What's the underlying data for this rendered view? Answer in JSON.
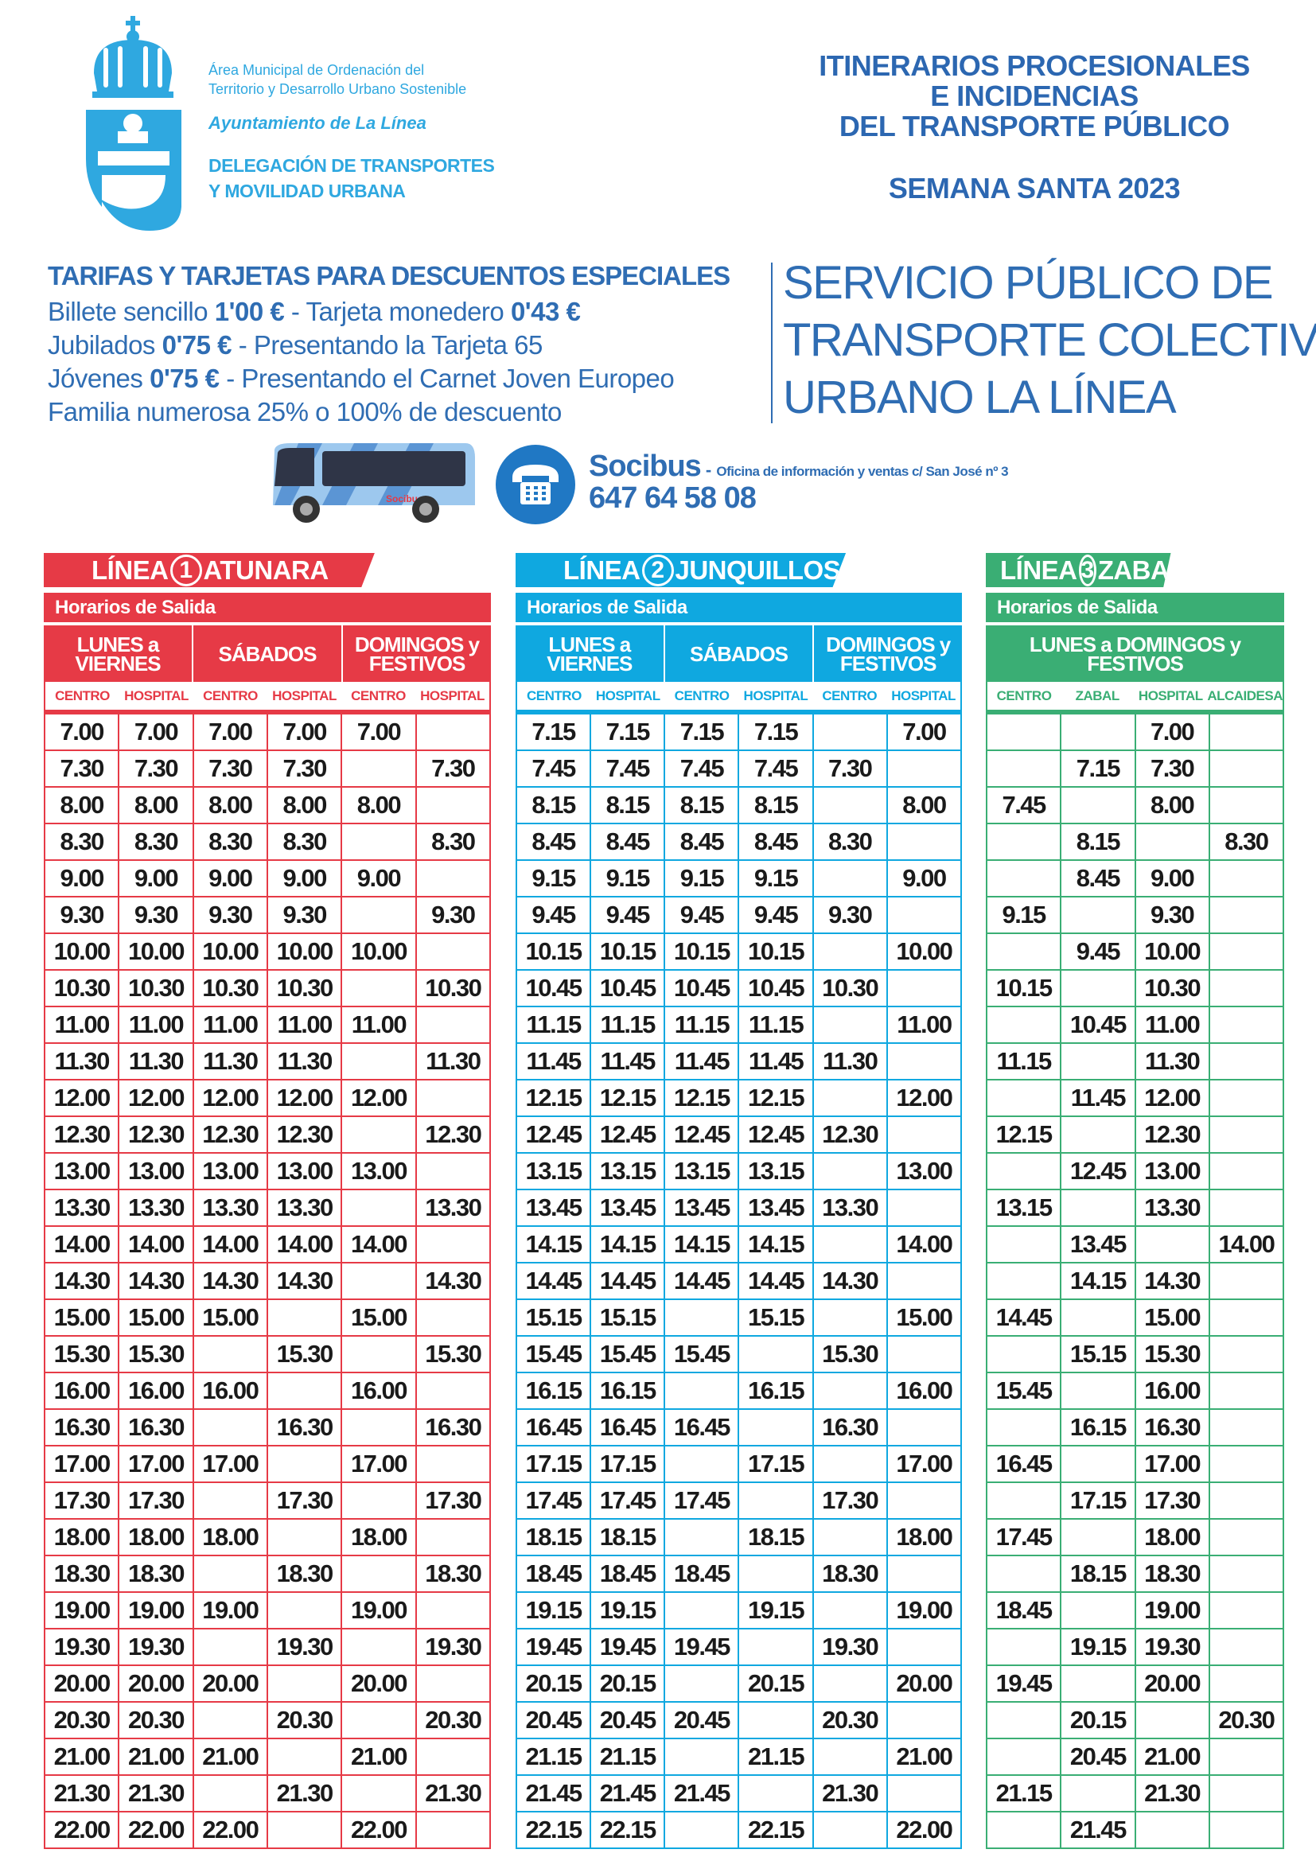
{
  "header": {
    "org_line1": "Área Municipal de Ordenación del",
    "org_line2": "Territorio y Desarrollo Urbano Sostenible",
    "ayuntamiento": "Ayuntamiento de La Línea",
    "delegacion_line1": "DELEGACIÓN DE TRANSPORTES",
    "delegacion_line2": "Y MOVILIDAD URBANA",
    "title_line1": "ITINERARIOS PROCESIONALES",
    "title_line2": "E INCIDENCIAS",
    "title_line3": "DEL TRANSPORTE PÚBLICO",
    "subtitle": "SEMANA SANTA 2023"
  },
  "tarifas": {
    "title": "TARIFAS Y TARJETAS PARA DESCUENTOS ESPECIALES",
    "l1a": "Billete sencillo ",
    "l1b": "1'00 €",
    "l1c": " - Tarjeta monedero ",
    "l1d": "0'43 €",
    "l2a": "Jubilados ",
    "l2b": "0'75 €",
    "l2c": " - Presentando la Tarjeta 65",
    "l3a": "Jóvenes ",
    "l3b": "0'75 €",
    "l3c": " - Presentando el Carnet Joven Europeo",
    "l4": "Familia numerosa 25% o 100% de descuento"
  },
  "servicio": {
    "line1": "SERVICIO PÚBLICO DE",
    "line2": "TRANSPORTE COLECTIVO",
    "line3": "URBANO LA LÍNEA"
  },
  "contact": {
    "company": "Socibus",
    "dash": " - ",
    "office": "Oficina de información y ventas c/ San José nº 3",
    "phone": "647 64 58 08",
    "icon": "telephone-icon",
    "bus_logo_text": "Socibus"
  },
  "colors": {
    "linea1": "#e63a46",
    "linea2": "#0fa8e0",
    "linea3": "#3aae74",
    "text_blue": "#2f6db3",
    "logo_blue": "#2fa8e0"
  },
  "lines": [
    {
      "prefix": "LÍNEA",
      "number": "1",
      "name": "ATUNARA",
      "horarios": "Horarios de Salida",
      "groups": [
        "LUNES a VIERNES",
        "SÁBADOS",
        "DOMINGOS y FESTIVOS"
      ],
      "columns": [
        "CENTRO",
        "HOSPITAL",
        "CENTRO",
        "HOSPITAL",
        "CENTRO",
        "HOSPITAL"
      ],
      "rows": [
        [
          "7.00",
          "7.00",
          "7.00",
          "7.00",
          "7.00",
          ""
        ],
        [
          "7.30",
          "7.30",
          "7.30",
          "7.30",
          "",
          "7.30"
        ],
        [
          "8.00",
          "8.00",
          "8.00",
          "8.00",
          "8.00",
          ""
        ],
        [
          "8.30",
          "8.30",
          "8.30",
          "8.30",
          "",
          "8.30"
        ],
        [
          "9.00",
          "9.00",
          "9.00",
          "9.00",
          "9.00",
          ""
        ],
        [
          "9.30",
          "9.30",
          "9.30",
          "9.30",
          "",
          "9.30"
        ],
        [
          "10.00",
          "10.00",
          "10.00",
          "10.00",
          "10.00",
          ""
        ],
        [
          "10.30",
          "10.30",
          "10.30",
          "10.30",
          "",
          "10.30"
        ],
        [
          "11.00",
          "11.00",
          "11.00",
          "11.00",
          "11.00",
          ""
        ],
        [
          "11.30",
          "11.30",
          "11.30",
          "11.30",
          "",
          "11.30"
        ],
        [
          "12.00",
          "12.00",
          "12.00",
          "12.00",
          "12.00",
          ""
        ],
        [
          "12.30",
          "12.30",
          "12.30",
          "12.30",
          "",
          "12.30"
        ],
        [
          "13.00",
          "13.00",
          "13.00",
          "13.00",
          "13.00",
          ""
        ],
        [
          "13.30",
          "13.30",
          "13.30",
          "13.30",
          "",
          "13.30"
        ],
        [
          "14.00",
          "14.00",
          "14.00",
          "14.00",
          "14.00",
          ""
        ],
        [
          "14.30",
          "14.30",
          "14.30",
          "14.30",
          "",
          "14.30"
        ],
        [
          "15.00",
          "15.00",
          "15.00",
          "",
          "15.00",
          ""
        ],
        [
          "15.30",
          "15.30",
          "",
          "15.30",
          "",
          "15.30"
        ],
        [
          "16.00",
          "16.00",
          "16.00",
          "",
          "16.00",
          ""
        ],
        [
          "16.30",
          "16.30",
          "",
          "16.30",
          "",
          "16.30"
        ],
        [
          "17.00",
          "17.00",
          "17.00",
          "",
          "17.00",
          ""
        ],
        [
          "17.30",
          "17.30",
          "",
          "17.30",
          "",
          "17.30"
        ],
        [
          "18.00",
          "18.00",
          "18.00",
          "",
          "18.00",
          ""
        ],
        [
          "18.30",
          "18.30",
          "",
          "18.30",
          "",
          "18.30"
        ],
        [
          "19.00",
          "19.00",
          "19.00",
          "",
          "19.00",
          ""
        ],
        [
          "19.30",
          "19.30",
          "",
          "19.30",
          "",
          "19.30"
        ],
        [
          "20.00",
          "20.00",
          "20.00",
          "",
          "20.00",
          ""
        ],
        [
          "20.30",
          "20.30",
          "",
          "20.30",
          "",
          "20.30"
        ],
        [
          "21.00",
          "21.00",
          "21.00",
          "",
          "21.00",
          ""
        ],
        [
          "21.30",
          "21.30",
          "",
          "21.30",
          "",
          "21.30"
        ],
        [
          "22.00",
          "22.00",
          "22.00",
          "",
          "22.00",
          ""
        ]
      ]
    },
    {
      "prefix": "LÍNEA",
      "number": "2",
      "name": "JUNQUILLOS",
      "horarios": "Horarios de Salida",
      "groups": [
        "LUNES a VIERNES",
        "SÁBADOS",
        "DOMINGOS y FESTIVOS"
      ],
      "columns": [
        "CENTRO",
        "HOSPITAL",
        "CENTRO",
        "HOSPITAL",
        "CENTRO",
        "HOSPITAL"
      ],
      "rows": [
        [
          "7.15",
          "7.15",
          "7.15",
          "7.15",
          "",
          "7.00"
        ],
        [
          "7.45",
          "7.45",
          "7.45",
          "7.45",
          "7.30",
          ""
        ],
        [
          "8.15",
          "8.15",
          "8.15",
          "8.15",
          "",
          "8.00"
        ],
        [
          "8.45",
          "8.45",
          "8.45",
          "8.45",
          "8.30",
          ""
        ],
        [
          "9.15",
          "9.15",
          "9.15",
          "9.15",
          "",
          "9.00"
        ],
        [
          "9.45",
          "9.45",
          "9.45",
          "9.45",
          "9.30",
          ""
        ],
        [
          "10.15",
          "10.15",
          "10.15",
          "10.15",
          "",
          "10.00"
        ],
        [
          "10.45",
          "10.45",
          "10.45",
          "10.45",
          "10.30",
          ""
        ],
        [
          "11.15",
          "11.15",
          "11.15",
          "11.15",
          "",
          "11.00"
        ],
        [
          "11.45",
          "11.45",
          "11.45",
          "11.45",
          "11.30",
          ""
        ],
        [
          "12.15",
          "12.15",
          "12.15",
          "12.15",
          "",
          "12.00"
        ],
        [
          "12.45",
          "12.45",
          "12.45",
          "12.45",
          "12.30",
          ""
        ],
        [
          "13.15",
          "13.15",
          "13.15",
          "13.15",
          "",
          "13.00"
        ],
        [
          "13.45",
          "13.45",
          "13.45",
          "13.45",
          "13.30",
          ""
        ],
        [
          "14.15",
          "14.15",
          "14.15",
          "14.15",
          "",
          "14.00"
        ],
        [
          "14.45",
          "14.45",
          "14.45",
          "14.45",
          "14.30",
          ""
        ],
        [
          "15.15",
          "15.15",
          "",
          "15.15",
          "",
          "15.00"
        ],
        [
          "15.45",
          "15.45",
          "15.45",
          "",
          "15.30",
          ""
        ],
        [
          "16.15",
          "16.15",
          "",
          "16.15",
          "",
          "16.00"
        ],
        [
          "16.45",
          "16.45",
          "16.45",
          "",
          "16.30",
          ""
        ],
        [
          "17.15",
          "17.15",
          "",
          "17.15",
          "",
          "17.00"
        ],
        [
          "17.45",
          "17.45",
          "17.45",
          "",
          "17.30",
          ""
        ],
        [
          "18.15",
          "18.15",
          "",
          "18.15",
          "",
          "18.00"
        ],
        [
          "18.45",
          "18.45",
          "18.45",
          "",
          "18.30",
          ""
        ],
        [
          "19.15",
          "19.15",
          "",
          "19.15",
          "",
          "19.00"
        ],
        [
          "19.45",
          "19.45",
          "19.45",
          "",
          "19.30",
          ""
        ],
        [
          "20.15",
          "20.15",
          "",
          "20.15",
          "",
          "20.00"
        ],
        [
          "20.45",
          "20.45",
          "20.45",
          "",
          "20.30",
          ""
        ],
        [
          "21.15",
          "21.15",
          "",
          "21.15",
          "",
          "21.00"
        ],
        [
          "21.45",
          "21.45",
          "21.45",
          "",
          "21.30",
          ""
        ],
        [
          "22.15",
          "22.15",
          "",
          "22.15",
          "",
          "22.00"
        ]
      ]
    },
    {
      "prefix": "LÍNEA",
      "number": "3",
      "name": "ZABAL",
      "horarios": "Horarios de Salida",
      "groups": [
        "LUNES a DOMINGOS y FESTIVOS"
      ],
      "columns": [
        "CENTRO",
        "ZABAL",
        "HOSPITAL",
        "ALCAIDESA"
      ],
      "rows": [
        [
          "",
          "",
          "7.00",
          ""
        ],
        [
          "",
          "7.15",
          "7.30",
          ""
        ],
        [
          "7.45",
          "",
          "8.00",
          ""
        ],
        [
          "",
          "8.15",
          "",
          "8.30"
        ],
        [
          "",
          "8.45",
          "9.00",
          ""
        ],
        [
          "9.15",
          "",
          "9.30",
          ""
        ],
        [
          "",
          "9.45",
          "10.00",
          ""
        ],
        [
          "10.15",
          "",
          "10.30",
          ""
        ],
        [
          "",
          "10.45",
          "11.00",
          ""
        ],
        [
          "11.15",
          "",
          "11.30",
          ""
        ],
        [
          "",
          "11.45",
          "12.00",
          ""
        ],
        [
          "12.15",
          "",
          "12.30",
          ""
        ],
        [
          "",
          "12.45",
          "13.00",
          ""
        ],
        [
          "13.15",
          "",
          "13.30",
          ""
        ],
        [
          "",
          "13.45",
          "",
          "14.00"
        ],
        [
          "",
          "14.15",
          "14.30",
          ""
        ],
        [
          "14.45",
          "",
          "15.00",
          ""
        ],
        [
          "",
          "15.15",
          "15.30",
          ""
        ],
        [
          "15.45",
          "",
          "16.00",
          ""
        ],
        [
          "",
          "16.15",
          "16.30",
          ""
        ],
        [
          "16.45",
          "",
          "17.00",
          ""
        ],
        [
          "",
          "17.15",
          "17.30",
          ""
        ],
        [
          "17.45",
          "",
          "18.00",
          ""
        ],
        [
          "",
          "18.15",
          "18.30",
          ""
        ],
        [
          "18.45",
          "",
          "19.00",
          ""
        ],
        [
          "",
          "19.15",
          "19.30",
          ""
        ],
        [
          "19.45",
          "",
          "20.00",
          ""
        ],
        [
          "",
          "20.15",
          "",
          "20.30"
        ],
        [
          "",
          "20.45",
          "21.00",
          ""
        ],
        [
          "21.15",
          "",
          "21.30",
          ""
        ],
        [
          "",
          "21.45",
          "",
          ""
        ]
      ]
    }
  ]
}
